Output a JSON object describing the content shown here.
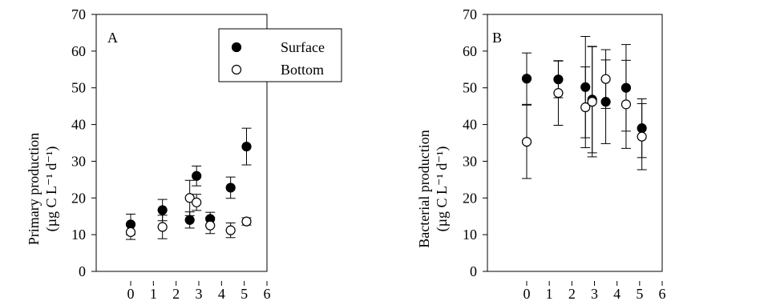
{
  "chart_data": [
    {
      "type": "scatter",
      "panel_label": "A",
      "ylabel": "Primary production",
      "ylabel_unit": "(µg C L⁻¹ d⁻¹)",
      "xlim": [
        0,
        6
      ],
      "ylim": [
        0,
        70
      ],
      "xticks": [
        "0",
        "1",
        "2",
        "3",
        "4",
        "5",
        "6"
      ],
      "yticks": [
        "0",
        "10",
        "20",
        "30",
        "40",
        "50",
        "60",
        "70"
      ],
      "legend": {
        "placement": "top-right",
        "entries": [
          {
            "name": "Surface",
            "marker": "filled"
          },
          {
            "name": "Bottom",
            "marker": "open"
          }
        ]
      },
      "series": [
        {
          "name": "Surface",
          "marker": "filled",
          "points": [
            {
              "x": 0.0,
              "y": 12.8,
              "err": 2.8
            },
            {
              "x": 1.4,
              "y": 16.7,
              "err": 2.9
            },
            {
              "x": 2.6,
              "y": 14.0,
              "err": 2.2
            },
            {
              "x": 2.9,
              "y": 26.0,
              "err": 2.7
            },
            {
              "x": 3.5,
              "y": 14.3,
              "err": 1.8
            },
            {
              "x": 4.4,
              "y": 22.8,
              "err": 2.9
            },
            {
              "x": 5.1,
              "y": 34.0,
              "err": 5.0
            }
          ]
        },
        {
          "name": "Bottom",
          "marker": "open",
          "points": [
            {
              "x": 0.0,
              "y": 10.7,
              "err": 2.0
            },
            {
              "x": 1.4,
              "y": 12.1,
              "err": 3.2
            },
            {
              "x": 2.6,
              "y": 20.0,
              "err": 4.8
            },
            {
              "x": 2.9,
              "y": 18.8,
              "err": 2.2
            },
            {
              "x": 3.5,
              "y": 12.5,
              "err": 2.2
            },
            {
              "x": 4.4,
              "y": 11.2,
              "err": 2.0
            },
            {
              "x": 5.1,
              "y": 13.6,
              "err": 1.0
            }
          ]
        }
      ]
    },
    {
      "type": "scatter",
      "panel_label": "B",
      "ylabel": "Bacterial production",
      "ylabel_unit": "(µg C L⁻¹ d⁻¹)",
      "xlim": [
        0,
        6
      ],
      "ylim": [
        0,
        70
      ],
      "xticks": [
        "0",
        "1",
        "2",
        "3",
        "4",
        "5",
        "6"
      ],
      "yticks": [
        "0",
        "10",
        "20",
        "30",
        "40",
        "50",
        "60",
        "70"
      ],
      "series": [
        {
          "name": "Surface",
          "marker": "filled",
          "points": [
            {
              "x": 0.0,
              "y": 52.5,
              "err": 7.0
            },
            {
              "x": 1.4,
              "y": 52.3,
              "err": 5.0
            },
            {
              "x": 2.6,
              "y": 50.2,
              "err": 13.8
            },
            {
              "x": 2.9,
              "y": 46.8,
              "err": 14.5
            },
            {
              "x": 3.5,
              "y": 46.2,
              "err": 11.4
            },
            {
              "x": 4.4,
              "y": 50.0,
              "err": 11.8
            },
            {
              "x": 5.1,
              "y": 39.0,
              "err": 8.0
            }
          ]
        },
        {
          "name": "Bottom",
          "marker": "open",
          "points": [
            {
              "x": 0.0,
              "y": 35.3,
              "err": 10.0
            },
            {
              "x": 1.4,
              "y": 48.6,
              "err": 8.8
            },
            {
              "x": 2.6,
              "y": 44.7,
              "err": 11.0
            },
            {
              "x": 2.9,
              "y": 46.2,
              "err": 15.0
            },
            {
              "x": 3.5,
              "y": 52.4,
              "err": 8.0
            },
            {
              "x": 4.4,
              "y": 45.5,
              "err": 12.0
            },
            {
              "x": 5.1,
              "y": 36.7,
              "err": 9.0
            }
          ]
        }
      ]
    }
  ]
}
